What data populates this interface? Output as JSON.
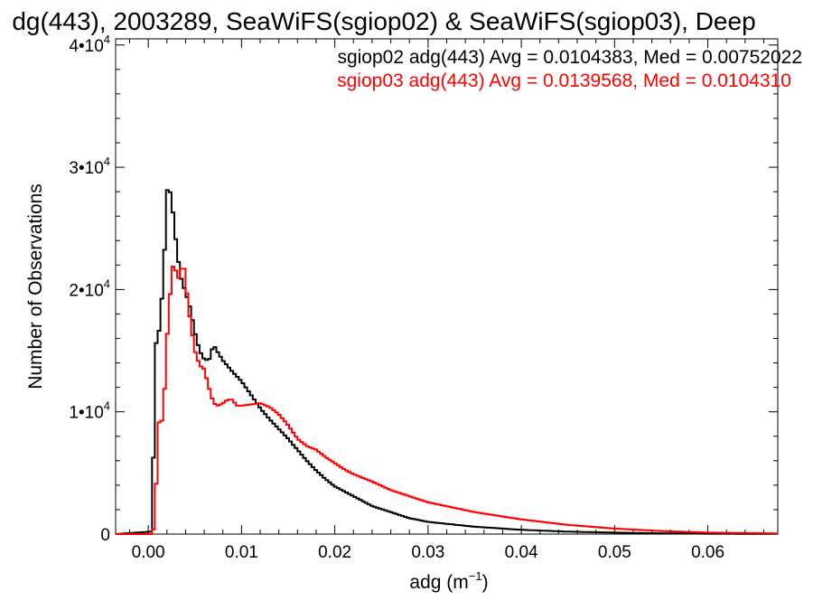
{
  "chart_data": {
    "type": "line",
    "title": "dg(443), 2003289, SeaWiFS(sgiop02) & SeaWiFS(sgiop03), Deep",
    "xlabel_main": "adg (m",
    "xlabel_sup": "−1",
    "xlabel_close": ")",
    "ylabel": "Number of Observations",
    "xlim": [
      -0.0035,
      0.0675
    ],
    "ylim": [
      0,
      40500
    ],
    "x_ticks": [
      {
        "value": 0.0,
        "label": "0.00"
      },
      {
        "value": 0.01,
        "label": "0.01"
      },
      {
        "value": 0.02,
        "label": "0.02"
      },
      {
        "value": 0.03,
        "label": "0.03"
      },
      {
        "value": 0.04,
        "label": "0.04"
      },
      {
        "value": 0.05,
        "label": "0.05"
      },
      {
        "value": 0.06,
        "label": "0.06"
      }
    ],
    "y_ticks": [
      {
        "value": 0,
        "mantissa": "0",
        "sup": ""
      },
      {
        "value": 10000,
        "mantissa": "1•10",
        "sup": "4"
      },
      {
        "value": 20000,
        "mantissa": "2•10",
        "sup": "4"
      },
      {
        "value": 30000,
        "mantissa": "3•10",
        "sup": "4"
      },
      {
        "value": 40000,
        "mantissa": "4•10",
        "sup": "4"
      }
    ],
    "grid": false,
    "legend_position": "top-right",
    "series": [
      {
        "name": "sgiop02 adg(443) Avg = 0.0104383, Med = 0.00752022",
        "color": "#000000",
        "x": [
          -0.0035,
          0.0003,
          0.0005,
          0.0007,
          0.0009,
          0.0011,
          0.0013,
          0.0015,
          0.0017,
          0.0019,
          0.0021,
          0.0023,
          0.0025,
          0.0027,
          0.0029,
          0.0031,
          0.0033,
          0.0035,
          0.0037,
          0.0039,
          0.0041,
          0.0045,
          0.005,
          0.0055,
          0.006,
          0.0065,
          0.007,
          0.0075,
          0.008,
          0.009,
          0.01,
          0.011,
          0.012,
          0.013,
          0.014,
          0.015,
          0.016,
          0.017,
          0.018,
          0.019,
          0.02,
          0.022,
          0.024,
          0.026,
          0.028,
          0.03,
          0.035,
          0.04,
          0.045,
          0.05,
          0.055,
          0.06,
          0.0675
        ],
        "y": [
          0,
          200,
          4000,
          13000,
          16500,
          16500,
          17000,
          20000,
          22000,
          27000,
          28500,
          28200,
          27200,
          26000,
          24500,
          23000,
          22000,
          21000,
          20500,
          20000,
          19500,
          18500,
          16500,
          15000,
          14300,
          14200,
          15500,
          14800,
          14200,
          13300,
          12500,
          11400,
          10300,
          9400,
          8600,
          7800,
          6900,
          6000,
          5200,
          4500,
          3900,
          3100,
          2300,
          1800,
          1300,
          1000,
          600,
          350,
          200,
          120,
          60,
          30,
          20
        ]
      },
      {
        "name": "sgiop03 adg(443) Avg = 0.0139568, Med = 0.0104310",
        "color": "#ff0000",
        "x": [
          -0.0035,
          0.0005,
          0.0007,
          0.0009,
          0.0011,
          0.0013,
          0.0015,
          0.0017,
          0.0019,
          0.0021,
          0.0023,
          0.0025,
          0.0027,
          0.0029,
          0.0031,
          0.0033,
          0.0035,
          0.0037,
          0.0039,
          0.0041,
          0.0045,
          0.005,
          0.0055,
          0.006,
          0.0065,
          0.007,
          0.0075,
          0.008,
          0.0085,
          0.009,
          0.0095,
          0.01,
          0.011,
          0.012,
          0.013,
          0.014,
          0.015,
          0.016,
          0.017,
          0.018,
          0.019,
          0.02,
          0.021,
          0.022,
          0.024,
          0.026,
          0.028,
          0.03,
          0.035,
          0.04,
          0.045,
          0.05,
          0.055,
          0.06,
          0.0675
        ],
        "y": [
          0,
          0,
          1500,
          5000,
          9000,
          9500,
          9200,
          11000,
          14500,
          17000,
          19000,
          21500,
          22000,
          21800,
          20800,
          21000,
          21500,
          22300,
          21500,
          20000,
          17500,
          15000,
          13800,
          13500,
          12000,
          10700,
          10500,
          10700,
          11000,
          11000,
          10500,
          10500,
          10600,
          10700,
          10400,
          9800,
          8900,
          7800,
          7200,
          6900,
          6300,
          5800,
          5300,
          4900,
          4300,
          3600,
          3100,
          2600,
          1800,
          1200,
          750,
          450,
          250,
          120,
          60
        ]
      }
    ]
  }
}
